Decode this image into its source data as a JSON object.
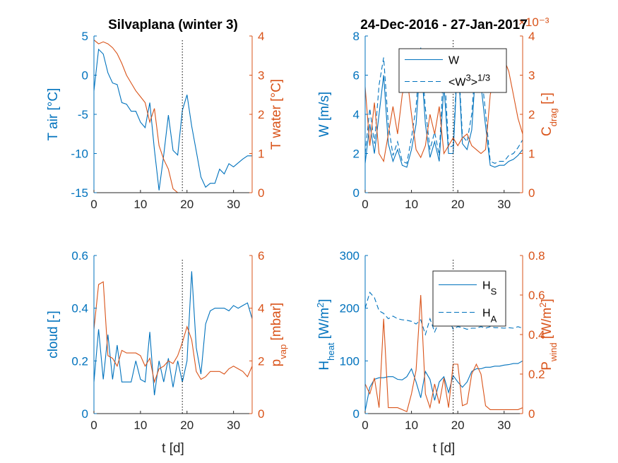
{
  "colors": {
    "left_axis": "#0072BD",
    "right_axis": "#D95319",
    "axes": "#262626",
    "marker_line": "#000000"
  },
  "chart_data": [
    {
      "type": "line",
      "id": "tl",
      "title": "Silvaplana (winter 3)",
      "xlabel": "",
      "xlim": [
        0,
        34
      ],
      "xticks": [
        0,
        10,
        20,
        30
      ],
      "vline_x": 19,
      "left": {
        "label_parts": [
          {
            "t": "T air [°C]"
          }
        ],
        "ylim": [
          -15,
          5
        ],
        "ticks": [
          -15,
          -10,
          -5,
          0,
          5
        ],
        "series": [
          {
            "style": "solid",
            "x": [
              0,
              1,
              2,
              3,
              4,
              5,
              6,
              7,
              8,
              9,
              10,
              11,
              12,
              13,
              14,
              15,
              16,
              17,
              18,
              19,
              20,
              21,
              22,
              23,
              24,
              25,
              26,
              27,
              28,
              29,
              30,
              31,
              32,
              33,
              34
            ],
            "y": [
              -2,
              3.3,
              2.7,
              0.3,
              -1,
              -1.2,
              -3.5,
              -3.7,
              -4.6,
              -4.6,
              -6,
              -6.7,
              -3.5,
              -9.5,
              -14.7,
              -10.2,
              -5.1,
              -9.6,
              -10.2,
              -4.5,
              -2.5,
              -6.5,
              -9.7,
              -13,
              -14.3,
              -13.8,
              -13.8,
              -12,
              -12.6,
              -11.3,
              -11.7,
              -11.2,
              -10.7,
              -10.3,
              -10.3
            ]
          }
        ]
      },
      "right": {
        "label_parts": [
          {
            "t": "T water [°C]"
          }
        ],
        "ylim": [
          0,
          4
        ],
        "ticks": [
          0,
          1,
          2,
          3,
          4
        ],
        "series": [
          {
            "style": "solid",
            "x": [
              0,
              1,
              2,
              3,
              4,
              5,
              6,
              7,
              8,
              9,
              10,
              11,
              12,
              13,
              14,
              15,
              16,
              17,
              18,
              19,
              20,
              21,
              22,
              23,
              24,
              25,
              26,
              27,
              28,
              29,
              30,
              31,
              32,
              33,
              34
            ],
            "y": [
              3.9,
              3.8,
              3.85,
              3.8,
              3.7,
              3.55,
              3.3,
              3.0,
              2.8,
              2.6,
              2.45,
              2.3,
              1.8,
              2.15,
              1.2,
              0.85,
              0.6,
              0.1,
              0,
              0,
              0,
              0,
              0,
              0,
              0,
              0,
              0,
              0,
              0,
              0,
              0,
              0,
              0,
              0,
              0
            ]
          }
        ]
      }
    },
    {
      "type": "line",
      "id": "tr",
      "title": "24-Dec-2016 - 27-Jan-2017",
      "xlabel": "",
      "xlim": [
        0,
        34
      ],
      "xticks": [
        0,
        10,
        20,
        30
      ],
      "vline_x": 19,
      "right_exponent": "×10⁻³",
      "legend": [
        {
          "style": "solid",
          "label_parts": [
            {
              "t": "W"
            }
          ]
        },
        {
          "style": "dashed",
          "label_parts": [
            {
              "t": "<W"
            },
            {
              "t": "3",
              "s": "sup"
            },
            {
              "t": ">"
            },
            {
              "t": "1/3",
              "s": "sup"
            }
          ]
        }
      ],
      "left": {
        "label_parts": [
          {
            "t": "W [m/s]"
          }
        ],
        "ylim": [
          0,
          8
        ],
        "ticks": [
          0,
          2,
          4,
          6,
          8
        ],
        "series": [
          {
            "style": "solid",
            "x": [
              0,
              1,
              2,
              3,
              4,
              5,
              6,
              7,
              8,
              9,
              10,
              11,
              12,
              13,
              14,
              15,
              16,
              17,
              18,
              19,
              20,
              21,
              22,
              23,
              24,
              25,
              26,
              27,
              28,
              29,
              30,
              31,
              32,
              33,
              34
            ],
            "y": [
              1.5,
              3.5,
              2.0,
              4.0,
              6.0,
              2.5,
              1.6,
              2.2,
              1.4,
              1.3,
              2.2,
              3.5,
              7.0,
              3.5,
              1.8,
              2.6,
              1.6,
              5.5,
              2.0,
              2.0,
              7.0,
              2.5,
              2.2,
              3.2,
              6.8,
              5.5,
              3.4,
              1.4,
              1.3,
              1.4,
              1.4,
              1.6,
              1.7,
              1.9,
              2.2
            ]
          },
          {
            "style": "dashed",
            "x": [
              0,
              1,
              2,
              3,
              4,
              5,
              6,
              7,
              8,
              9,
              10,
              11,
              12,
              13,
              14,
              15,
              16,
              17,
              18,
              19,
              20,
              21,
              22,
              23,
              24,
              25,
              26,
              27,
              28,
              29,
              30,
              31,
              32,
              33,
              34
            ],
            "y": [
              2.0,
              4.3,
              2.5,
              5.5,
              6.9,
              3.5,
              1.9,
              2.6,
              1.6,
              1.5,
              2.8,
              4.4,
              7.4,
              4.3,
              2.2,
              3.1,
              1.9,
              6.8,
              2.3,
              2.4,
              7.3,
              2.9,
              2.6,
              4.0,
              7.2,
              6.3,
              4.1,
              1.6,
              1.5,
              1.6,
              1.6,
              1.9,
              2.0,
              2.3,
              2.7
            ]
          }
        ]
      },
      "right": {
        "label_parts": [
          {
            "t": "C"
          },
          {
            "t": "drag",
            "s": "sub"
          },
          {
            "t": " [-]"
          }
        ],
        "ylim": [
          0,
          4
        ],
        "ticks": [
          0,
          1,
          2,
          3,
          4
        ],
        "series": [
          {
            "style": "solid",
            "x": [
              0,
              1,
              2,
              3,
              4,
              5,
              6,
              7,
              8,
              9,
              10,
              11,
              12,
              13,
              14,
              15,
              16,
              17,
              18,
              19,
              20,
              21,
              22,
              23,
              24,
              25,
              26,
              27,
              28,
              29,
              30,
              31,
              32,
              33,
              34
            ],
            "y": [
              2.7,
              1.2,
              2.3,
              1.0,
              0.8,
              1.5,
              2.2,
              1.5,
              2.5,
              3.0,
              2.0,
              1.1,
              0.9,
              1.2,
              2.0,
              1.5,
              2.2,
              1.0,
              1.2,
              1.4,
              1.2,
              1.4,
              1.5,
              1.2,
              1.1,
              1.0,
              1.1,
              2.5,
              3.0,
              3.2,
              3.4,
              3.1,
              2.5,
              1.9,
              1.5
            ]
          }
        ]
      }
    },
    {
      "type": "line",
      "id": "bl",
      "title": "",
      "xlabel": "t [d]",
      "xlim": [
        0,
        34
      ],
      "xticks": [
        0,
        10,
        20,
        30
      ],
      "vline_x": 19,
      "left": {
        "label_parts": [
          {
            "t": "cloud [-]"
          }
        ],
        "ylim": [
          0,
          0.6
        ],
        "ticks": [
          0,
          0.2,
          0.4,
          0.6
        ],
        "series": [
          {
            "style": "solid",
            "x": [
              0,
              1,
              2,
              3,
              4,
              5,
              6,
              7,
              8,
              9,
              10,
              11,
              12,
              13,
              14,
              15,
              16,
              17,
              18,
              19,
              20,
              21,
              22,
              23,
              24,
              25,
              26,
              27,
              28,
              29,
              30,
              31,
              32,
              33,
              34
            ],
            "y": [
              0.12,
              0.32,
              0.13,
              0.3,
              0.13,
              0.26,
              0.12,
              0.12,
              0.12,
              0.2,
              0.13,
              0.12,
              0.31,
              0.07,
              0.2,
              0.12,
              0.21,
              0.1,
              0.2,
              0.12,
              0.2,
              0.54,
              0.25,
              0.15,
              0.34,
              0.39,
              0.4,
              0.4,
              0.4,
              0.39,
              0.41,
              0.4,
              0.41,
              0.42,
              0.36
            ]
          }
        ]
      },
      "right": {
        "label_parts": [
          {
            "t": "p"
          },
          {
            "t": "vap",
            "s": "sub"
          },
          {
            "t": " [mbar]"
          }
        ],
        "ylim": [
          0,
          6
        ],
        "ticks": [
          0,
          2,
          4,
          6
        ],
        "series": [
          {
            "style": "solid",
            "x": [
              0,
              1,
              2,
              3,
              4,
              5,
              6,
              7,
              8,
              9,
              10,
              11,
              12,
              13,
              14,
              15,
              16,
              17,
              18,
              19,
              20,
              21,
              22,
              23,
              24,
              25,
              26,
              27,
              28,
              29,
              30,
              31,
              32,
              33,
              34
            ],
            "y": [
              3.2,
              4.9,
              5.0,
              2.2,
              2.1,
              1.8,
              2.4,
              2.3,
              2.3,
              2.3,
              2.2,
              1.8,
              2.1,
              1.2,
              1.7,
              1.8,
              2.0,
              1.9,
              2.2,
              2.7,
              3.3,
              2.8,
              1.6,
              1.3,
              1.4,
              1.6,
              1.6,
              1.6,
              1.5,
              1.7,
              1.8,
              1.7,
              1.6,
              1.4,
              1.8
            ]
          }
        ]
      }
    },
    {
      "type": "line",
      "id": "br",
      "title": "",
      "xlabel": "t [d]",
      "xlim": [
        0,
        34
      ],
      "xticks": [
        0,
        10,
        20,
        30
      ],
      "vline_x": 19,
      "legend": [
        {
          "style": "solid",
          "label_parts": [
            {
              "t": "H"
            },
            {
              "t": "S",
              "s": "sub"
            }
          ]
        },
        {
          "style": "dashed",
          "label_parts": [
            {
              "t": "H"
            },
            {
              "t": "A",
              "s": "sub"
            }
          ]
        }
      ],
      "left": {
        "label_parts": [
          {
            "t": "H"
          },
          {
            "t": "heat",
            "s": "sub"
          },
          {
            "t": " [W/m"
          },
          {
            "t": "2",
            "s": "sup"
          },
          {
            "t": "]"
          }
        ],
        "ylim": [
          0,
          300
        ],
        "ticks": [
          0,
          100,
          200,
          300
        ],
        "series": [
          {
            "style": "solid",
            "x": [
              0,
              1,
              2,
              3,
              4,
              5,
              6,
              7,
              8,
              9,
              10,
              11,
              12,
              13,
              14,
              15,
              16,
              17,
              18,
              19,
              20,
              21,
              22,
              23,
              24,
              25,
              26,
              27,
              28,
              29,
              30,
              31,
              32,
              33,
              34
            ],
            "y": [
              5,
              50,
              65,
              68,
              68,
              70,
              70,
              65,
              64,
              70,
              85,
              60,
              30,
              80,
              65,
              25,
              60,
              70,
              40,
              72,
              60,
              50,
              60,
              80,
              85,
              85,
              88,
              88,
              90,
              90,
              92,
              93,
              95,
              95,
              100
            ]
          },
          {
            "style": "dashed",
            "x": [
              0,
              1,
              2,
              3,
              4,
              5,
              6,
              7,
              8,
              9,
              10,
              11,
              12,
              13,
              14,
              15,
              16,
              17,
              18,
              19,
              20,
              21,
              22,
              23,
              24,
              25,
              26,
              27,
              28,
              29,
              30,
              31,
              32,
              33,
              34
            ],
            "y": [
              200,
              230,
              220,
              195,
              190,
              180,
              185,
              180,
              178,
              177,
              175,
              170,
              178,
              150,
              180,
              155,
              175,
              170,
              180,
              160,
              165,
              163,
              160,
              162,
              162,
              165,
              162,
              165,
              163,
              163,
              162,
              163,
              162,
              165,
              162
            ]
          }
        ]
      },
      "right": {
        "label_parts": [
          {
            "t": "P"
          },
          {
            "t": "wind",
            "s": "sub"
          },
          {
            "t": " [W/m"
          },
          {
            "t": "2",
            "s": "sup"
          },
          {
            "t": "]"
          }
        ],
        "ylim": [
          0,
          0.8
        ],
        "ticks": [
          0,
          0.2,
          0.4,
          0.6,
          0.8
        ],
        "series": [
          {
            "style": "solid",
            "x": [
              0,
              1,
              2,
              3,
              4,
              5,
              6,
              7,
              8,
              9,
              10,
              11,
              12,
              13,
              14,
              15,
              16,
              17,
              18,
              19,
              20,
              21,
              22,
              23,
              24,
              25,
              26,
              27,
              28,
              29,
              30,
              31,
              32,
              33,
              34
            ],
            "y": [
              0.15,
              0.1,
              0.18,
              0.03,
              0.48,
              0.03,
              0.03,
              0.03,
              0.02,
              0.01,
              0.1,
              0.22,
              0.6,
              0.1,
              0.03,
              0.15,
              0.05,
              0.18,
              0.03,
              0.25,
              0.25,
              0.04,
              0.05,
              0.2,
              0.25,
              0.2,
              0.04,
              0.02,
              0.02,
              0.02,
              0.02,
              0.02,
              0.02,
              0.02,
              0.03
            ]
          }
        ]
      }
    }
  ]
}
